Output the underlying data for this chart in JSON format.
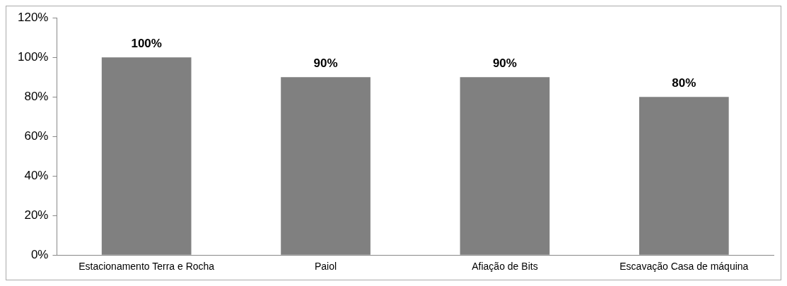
{
  "chart_data": {
    "type": "bar",
    "categories": [
      "Estacionamento Terra e Rocha",
      "Paiol",
      "Afiação de Bits",
      "Escavação Casa de máquina"
    ],
    "values": [
      100,
      90,
      90,
      80
    ],
    "value_labels": [
      "100%",
      "90%",
      "90%",
      "80%"
    ],
    "color": "#808080",
    "ylim": [
      0,
      120
    ],
    "yticks": [
      {
        "value": 0,
        "label": "0%"
      },
      {
        "value": 20,
        "label": "20%"
      },
      {
        "value": 40,
        "label": "40%"
      },
      {
        "value": 60,
        "label": "60%"
      },
      {
        "value": 80,
        "label": "80%"
      },
      {
        "value": 100,
        "label": "100%"
      },
      {
        "value": 120,
        "label": "120%"
      }
    ],
    "grid": false,
    "legend": false
  }
}
